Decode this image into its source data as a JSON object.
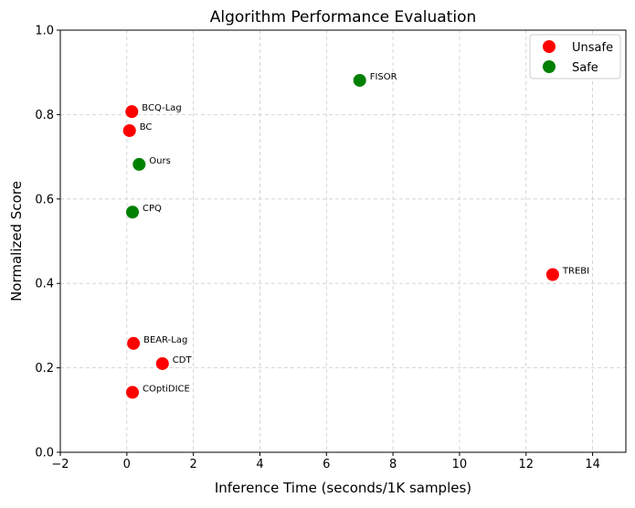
{
  "chart_data": {
    "type": "scatter",
    "title": "Algorithm Performance Evaluation",
    "xlabel": "Inference Time (seconds/1K samples)",
    "ylabel": "Normalized Score",
    "xlim": [
      -2,
      15
    ],
    "ylim": [
      0,
      1
    ],
    "xticks": [
      -2,
      0,
      2,
      4,
      6,
      8,
      10,
      12,
      14
    ],
    "yticks": [
      0.0,
      0.2,
      0.4,
      0.6,
      0.8,
      1.0
    ],
    "xtick_labels": [
      "−2",
      "0",
      "2",
      "4",
      "6",
      "8",
      "10",
      "12",
      "14"
    ],
    "ytick_labels": [
      "0.0",
      "0.2",
      "0.4",
      "0.6",
      "0.8",
      "1.0"
    ],
    "grid": true,
    "legend_position": "top-right",
    "series": [
      {
        "name": "Unsafe",
        "color": "#ff0000",
        "points": [
          {
            "label": "BCQ-Lag",
            "x": 0.15,
            "y": 0.807
          },
          {
            "label": "BC",
            "x": 0.08,
            "y": 0.762
          },
          {
            "label": "TREBI",
            "x": 12.8,
            "y": 0.421
          },
          {
            "label": "BEAR-Lag",
            "x": 0.2,
            "y": 0.258
          },
          {
            "label": "CDT",
            "x": 1.07,
            "y": 0.21
          },
          {
            "label": "COptiDICE",
            "x": 0.17,
            "y": 0.142
          }
        ]
      },
      {
        "name": "Safe",
        "color": "#008000",
        "points": [
          {
            "label": "FISOR",
            "x": 7.0,
            "y": 0.881
          },
          {
            "label": "Ours",
            "x": 0.37,
            "y": 0.682
          },
          {
            "label": "CPQ",
            "x": 0.17,
            "y": 0.569
          }
        ]
      }
    ]
  }
}
